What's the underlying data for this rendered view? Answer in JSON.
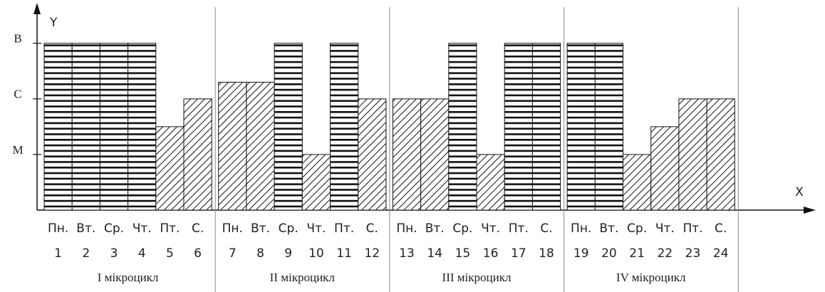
{
  "chart_data": {
    "type": "bar",
    "x_label": "X",
    "y_label": "Y",
    "categories": [
      "1",
      "2",
      "3",
      "4",
      "5",
      "6",
      "7",
      "8",
      "9",
      "10",
      "11",
      "12",
      "13",
      "14",
      "15",
      "16",
      "17",
      "18",
      "19",
      "20",
      "21",
      "22",
      "23",
      "24"
    ],
    "day_labels": [
      "Пн.",
      "Вт.",
      "Ср.",
      "Чт.",
      "Пт.",
      "С.",
      "Пн.",
      "Вт.",
      "Ср.",
      "Чт.",
      "Пт.",
      "С.",
      "Пн.",
      "Вт.",
      "Ср.",
      "Чт.",
      "Пт.",
      "С.",
      "Пн.",
      "Вт.",
      "Ср.",
      "Чт.",
      "Пт.",
      "С."
    ],
    "values": [
      3,
      3,
      3,
      3,
      1.5,
      2,
      2.3,
      2.3,
      3,
      1,
      3,
      2,
      2,
      2,
      3,
      1,
      3,
      3,
      3,
      3,
      1,
      1.5,
      2,
      2
    ],
    "patterns": [
      "horizontal",
      "horizontal",
      "horizontal",
      "horizontal",
      "diagonal",
      "diagonal",
      "diagonal",
      "diagonal",
      "horizontal",
      "diagonal",
      "horizontal",
      "diagonal",
      "diagonal",
      "diagonal",
      "horizontal",
      "diagonal",
      "horizontal",
      "horizontal",
      "horizontal",
      "horizontal",
      "diagonal",
      "diagonal",
      "diagonal",
      "diagonal"
    ],
    "groups": [
      "І мікроцикл",
      "ІІ мікроцикл",
      "ІІІ мікроцикл",
      "ІV мікроцикл"
    ],
    "ylim": [
      0,
      3.65
    ],
    "yticks": [
      {
        "value": 1,
        "label": "М"
      },
      {
        "value": 2,
        "label": "С"
      },
      {
        "value": 3,
        "label": "В"
      }
    ]
  }
}
